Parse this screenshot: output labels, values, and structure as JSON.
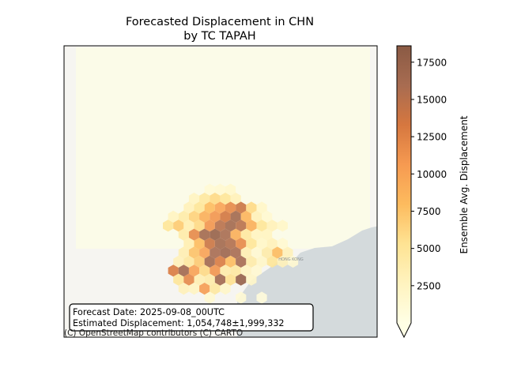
{
  "chart_data": {
    "type": "heatmap",
    "title_line1": "Forecasted Displacement in CHN",
    "title_line2": "by TC TAPAH",
    "colorbar": {
      "label": "Ensemble Avg. Displacement",
      "min": 0,
      "max": 18600,
      "ticks": [
        "2500",
        "5000",
        "7500",
        "10000",
        "12500",
        "15000",
        "17500"
      ],
      "colors": [
        "#ffffe5",
        "#fff3bf",
        "#fee393",
        "#fdbb5e",
        "#f69a51",
        "#d6773f",
        "#a86c51",
        "#8a5a44"
      ]
    },
    "annotation": {
      "line1": "Forecast Date: 2025-09-08_00UTC",
      "line2": "Estimated Displacement: 1,054,748±1,999,332"
    },
    "attribution": "(C) OpenStreetMap contributors (C) CARTO",
    "map_labels": [
      "HONG KONG"
    ],
    "cells": [
      [
        -2,
        3,
        1200
      ],
      [
        -1,
        3,
        1500
      ],
      [
        0,
        3,
        1800
      ],
      [
        -3,
        4,
        2500
      ],
      [
        -2,
        4,
        4500
      ],
      [
        -1,
        4,
        6000
      ],
      [
        0,
        4,
        5000
      ],
      [
        1,
        4,
        3000
      ],
      [
        -4,
        5,
        3000
      ],
      [
        -3,
        5,
        5000
      ],
      [
        -2,
        5,
        8000
      ],
      [
        -1,
        5,
        10000
      ],
      [
        0,
        5,
        12000
      ],
      [
        1,
        5,
        14000
      ],
      [
        2,
        5,
        6000
      ],
      [
        3,
        5,
        2000
      ],
      [
        -5,
        6,
        2500
      ],
      [
        -4,
        6,
        4000
      ],
      [
        -3,
        6,
        6500
      ],
      [
        -2,
        6,
        9000
      ],
      [
        -1,
        6,
        11000
      ],
      [
        0,
        6,
        13500
      ],
      [
        1,
        6,
        16500
      ],
      [
        2,
        6,
        8500
      ],
      [
        3,
        6,
        3000
      ],
      [
        4,
        6,
        1500
      ],
      [
        -6,
        7,
        5000
      ],
      [
        -5,
        7,
        7000
      ],
      [
        -4,
        7,
        3500
      ],
      [
        -3,
        7,
        6000
      ],
      [
        -2,
        7,
        11000
      ],
      [
        -1,
        7,
        15000
      ],
      [
        0,
        7,
        16500
      ],
      [
        1,
        7,
        15000
      ],
      [
        2,
        7,
        9000
      ],
      [
        3,
        7,
        5000
      ],
      [
        4,
        7,
        3000
      ],
      [
        5,
        7,
        2000
      ],
      [
        -4,
        8,
        4000
      ],
      [
        -3,
        8,
        12000
      ],
      [
        -2,
        8,
        16500
      ],
      [
        -1,
        8,
        17500
      ],
      [
        0,
        8,
        16000
      ],
      [
        1,
        8,
        9000
      ],
      [
        2,
        8,
        4500
      ],
      [
        3,
        8,
        2500
      ],
      [
        4,
        8,
        2500
      ],
      [
        -4,
        9,
        3500
      ],
      [
        -3,
        9,
        8000
      ],
      [
        -2,
        9,
        14000
      ],
      [
        -1,
        9,
        16500
      ],
      [
        0,
        9,
        15500
      ],
      [
        1,
        9,
        12000
      ],
      [
        2,
        9,
        5000
      ],
      [
        3,
        9,
        2000
      ],
      [
        4,
        9,
        3000
      ],
      [
        5,
        9,
        1500
      ],
      [
        -4,
        10,
        3500
      ],
      [
        -3,
        10,
        7500
      ],
      [
        -2,
        10,
        10000
      ],
      [
        -1,
        10,
        16000
      ],
      [
        0,
        10,
        17000
      ],
      [
        1,
        10,
        16000
      ],
      [
        2,
        10,
        3500
      ],
      [
        3,
        10,
        1500
      ],
      [
        4,
        10,
        4000
      ],
      [
        5,
        10,
        8000
      ],
      [
        6,
        10,
        3000
      ],
      [
        -5,
        11,
        3000
      ],
      [
        -4,
        11,
        4500
      ],
      [
        -3,
        11,
        7000
      ],
      [
        -2,
        11,
        16500
      ],
      [
        -1,
        11,
        13000
      ],
      [
        0,
        11,
        8000
      ],
      [
        1,
        11,
        16000
      ],
      [
        2,
        11,
        4000
      ],
      [
        3,
        11,
        2000
      ],
      [
        4,
        11,
        5000
      ],
      [
        5,
        11,
        3000
      ],
      [
        6,
        11,
        1500
      ],
      [
        -5,
        12,
        13000
      ],
      [
        -4,
        12,
        16500
      ],
      [
        -3,
        12,
        10000
      ],
      [
        -2,
        12,
        6000
      ],
      [
        -1,
        12,
        11000
      ],
      [
        0,
        12,
        4000
      ],
      [
        1,
        12,
        4500
      ],
      [
        2,
        12,
        2500
      ],
      [
        3,
        12,
        1500
      ],
      [
        -5,
        13,
        5000
      ],
      [
        -4,
        13,
        12000
      ],
      [
        -3,
        13,
        3500
      ],
      [
        -2,
        13,
        4000
      ],
      [
        -1,
        13,
        16500
      ],
      [
        0,
        13,
        5500
      ],
      [
        1,
        13,
        17500
      ],
      [
        2,
        13,
        2000
      ],
      [
        -4,
        14,
        3000
      ],
      [
        -3,
        14,
        2500
      ],
      [
        -2,
        14,
        10500
      ],
      [
        -1,
        14,
        4500
      ],
      [
        0,
        14,
        2000
      ],
      [
        -2,
        15,
        1500
      ],
      [
        1,
        15,
        1200
      ],
      [
        3,
        15,
        800
      ]
    ]
  }
}
